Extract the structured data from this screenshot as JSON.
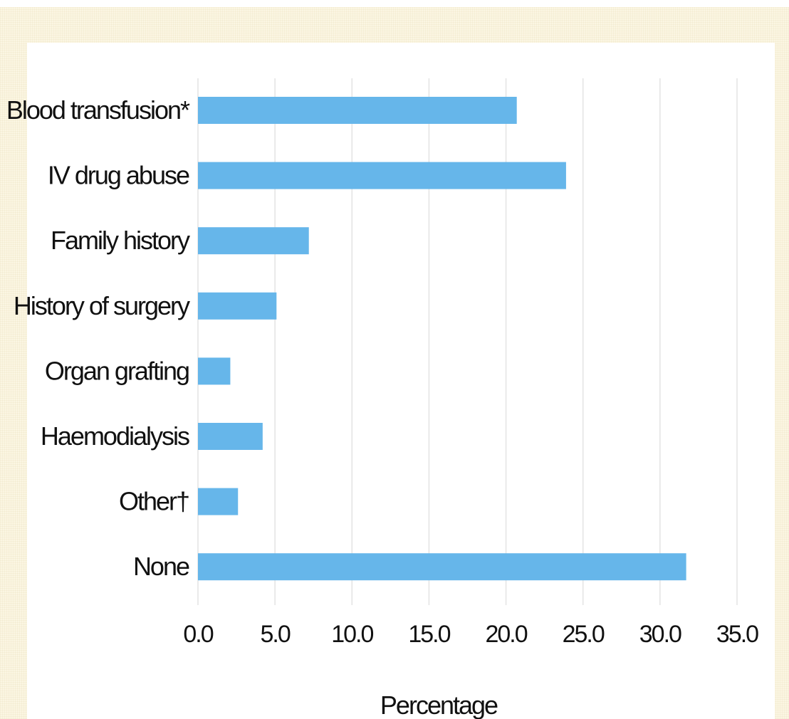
{
  "chart_data": {
    "type": "bar",
    "orientation": "horizontal",
    "title": "",
    "xlabel": "Percentage",
    "ylabel": "",
    "xlim": [
      0,
      35
    ],
    "grid": true,
    "bar_color": "#66b6ea",
    "categories": [
      "Blood transfusion*",
      "IV drug abuse",
      "Family history",
      "History of surgery",
      "Organ grafting",
      "Haemodialysis",
      "Other†",
      "None"
    ],
    "values": [
      20.7,
      23.9,
      7.2,
      5.1,
      2.1,
      4.2,
      2.6,
      31.7
    ],
    "ticks": [
      "0.0",
      "5.0",
      "10.0",
      "15.0",
      "20.0",
      "25.0",
      "30.0",
      "35.0"
    ]
  }
}
